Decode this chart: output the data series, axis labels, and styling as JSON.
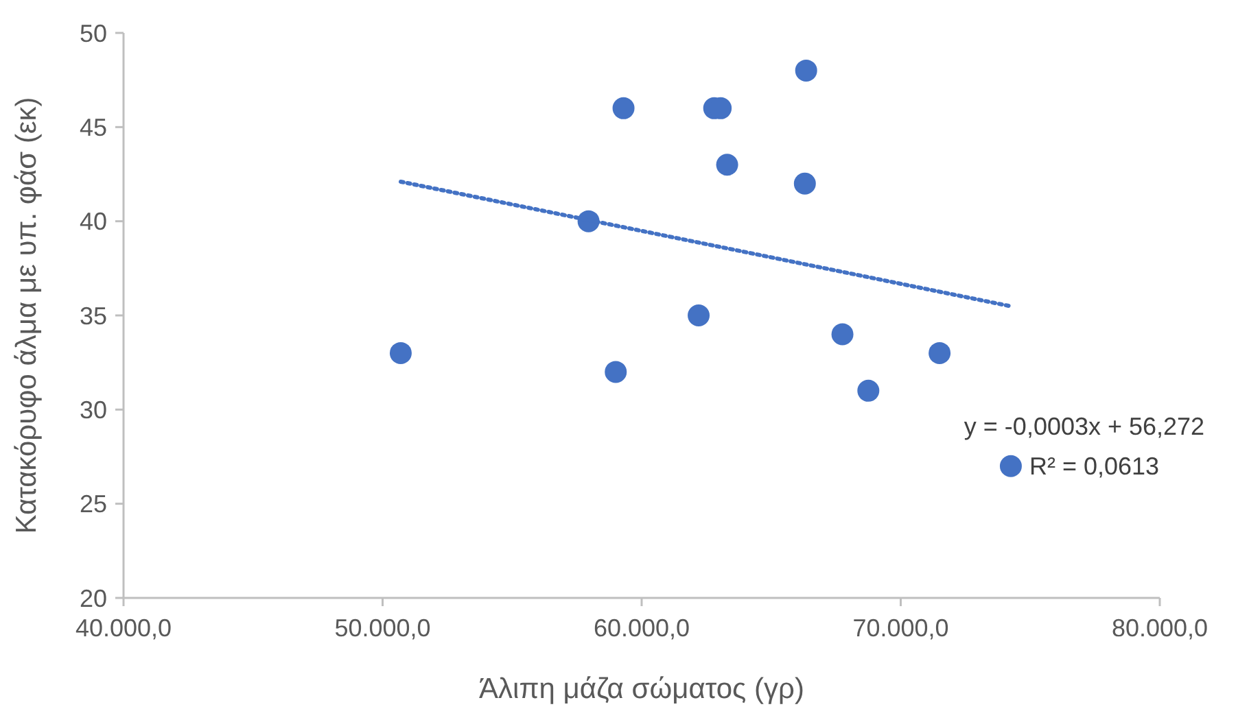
{
  "chart_data": {
    "type": "scatter",
    "xlabel": "Άλιπη μάζα σώματος (γρ)",
    "ylabel": "Κατακόρυφο άλμα με υπ. φάσ (εκ)",
    "xlim": [
      40000,
      80000
    ],
    "ylim": [
      20,
      50
    ],
    "xticks": [
      {
        "value": 40000,
        "label": "40.000,0"
      },
      {
        "value": 50000,
        "label": "50.000,0"
      },
      {
        "value": 60000,
        "label": "60.000,0"
      },
      {
        "value": 70000,
        "label": "70.000,0"
      },
      {
        "value": 80000,
        "label": "80.000,0"
      }
    ],
    "yticks": [
      20,
      25,
      30,
      35,
      40,
      45,
      50
    ],
    "grid": false,
    "series": [
      {
        "color": "#4472c4",
        "marker": "circle",
        "x": [
          50700,
          59300,
          57950,
          59000,
          62800,
          63050,
          63300,
          62200,
          66350,
          66300,
          67750,
          68750,
          71500,
          74250
        ],
        "values": [
          33,
          46,
          40,
          32,
          46,
          46,
          43,
          35,
          48,
          42,
          34,
          31,
          33,
          27
        ]
      },
      {
        "type": "line",
        "color": "#4472c4",
        "line_style": "dotted",
        "marker": "none",
        "x": [
          50700,
          74200
        ],
        "values": [
          42.1,
          35.5
        ]
      }
    ],
    "annotations": [
      "y = -0,0003x + 56,272",
      "R² = 0,0613"
    ]
  }
}
